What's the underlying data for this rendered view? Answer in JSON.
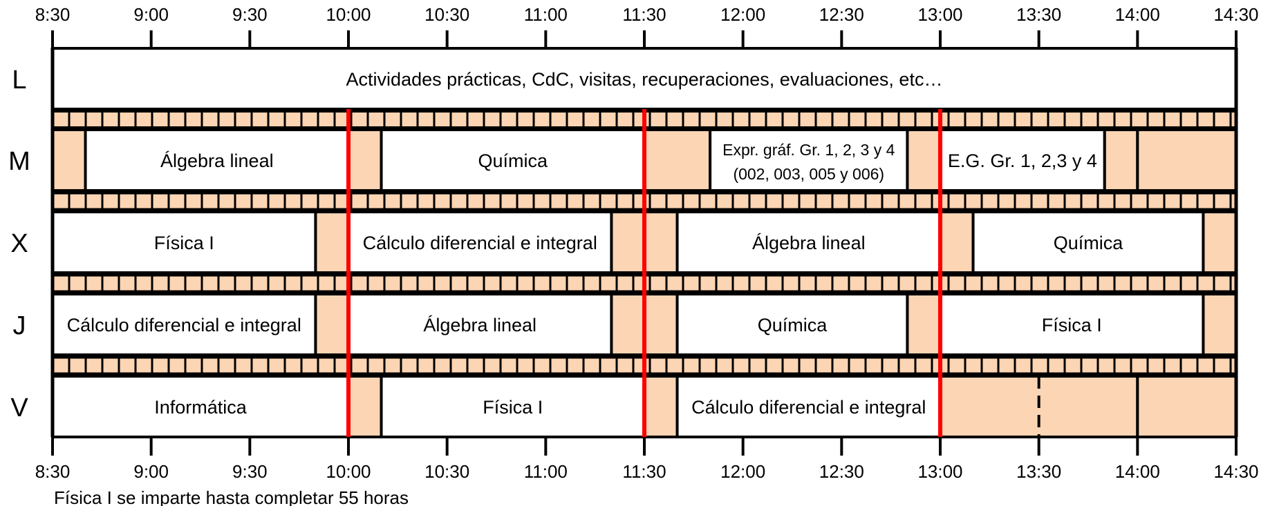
{
  "time_labels": [
    "8:30",
    "9:00",
    "9:30",
    "10:00",
    "10:30",
    "11:00",
    "11:30",
    "12:00",
    "12:30",
    "13:00",
    "13:30",
    "14:00",
    "14:30"
  ],
  "days": [
    {
      "label": "L",
      "blocks": [
        {
          "text": "Actividades prácticas, CdC, visitas, recuperaciones, evaluaciones, etc…",
          "start": "8:30",
          "end": "14:30",
          "kind": "class"
        }
      ]
    },
    {
      "label": "M",
      "blocks": [
        {
          "text": "",
          "start": "8:30",
          "end": "8:40",
          "kind": "break"
        },
        {
          "text": "Álgebra lineal",
          "start": "8:40",
          "end": "10:00",
          "kind": "class"
        },
        {
          "text": "",
          "start": "10:00",
          "end": "10:10",
          "kind": "break"
        },
        {
          "text": "Química",
          "start": "10:10",
          "end": "11:30",
          "kind": "class"
        },
        {
          "text": "",
          "start": "11:30",
          "end": "11:50",
          "kind": "break"
        },
        {
          "text": "Expr. gráf. Gr. 1, 2, 3  y 4",
          "text2": "(002, 003, 005 y 006)",
          "start": "11:50",
          "end": "12:50",
          "kind": "class"
        },
        {
          "text": "",
          "start": "12:50",
          "end": "13:00",
          "kind": "break"
        },
        {
          "text": "E.G. Gr. 1, 2,3 y 4",
          "start": "13:00",
          "end": "13:50",
          "kind": "class"
        },
        {
          "text": "",
          "start": "13:50",
          "end": "14:00",
          "kind": "break"
        },
        {
          "text": "",
          "start": "14:00",
          "end": "14:30",
          "kind": "break"
        }
      ]
    },
    {
      "label": "X",
      "blocks": [
        {
          "text": "Física I",
          "start": "8:30",
          "end": "9:50",
          "kind": "class"
        },
        {
          "text": "",
          "start": "9:50",
          "end": "10:00",
          "kind": "break"
        },
        {
          "text": "Cálculo diferencial e integral",
          "start": "10:00",
          "end": "11:20",
          "kind": "class"
        },
        {
          "text": "",
          "start": "11:20",
          "end": "11:40",
          "kind": "break"
        },
        {
          "text": "Álgebra lineal",
          "start": "11:40",
          "end": "13:00",
          "kind": "class"
        },
        {
          "text": "",
          "start": "13:00",
          "end": "13:10",
          "kind": "break"
        },
        {
          "text": "Química",
          "start": "13:10",
          "end": "14:20",
          "kind": "class"
        },
        {
          "text": "",
          "start": "14:20",
          "end": "14:30",
          "kind": "break"
        }
      ]
    },
    {
      "label": "J",
      "blocks": [
        {
          "text": "Cálculo diferencial e integral",
          "start": "8:30",
          "end": "9:50",
          "kind": "class"
        },
        {
          "text": "",
          "start": "9:50",
          "end": "10:00",
          "kind": "break"
        },
        {
          "text": "Álgebra lineal",
          "start": "10:00",
          "end": "11:20",
          "kind": "class"
        },
        {
          "text": "",
          "start": "11:20",
          "end": "11:40",
          "kind": "break"
        },
        {
          "text": "Química",
          "start": "11:40",
          "end": "12:50",
          "kind": "class"
        },
        {
          "text": "",
          "start": "12:50",
          "end": "13:00",
          "kind": "break"
        },
        {
          "text": "Física I",
          "start": "13:00",
          "end": "14:20",
          "kind": "class"
        },
        {
          "text": "",
          "start": "14:20",
          "end": "14:30",
          "kind": "break"
        }
      ]
    },
    {
      "label": "V",
      "blocks": [
        {
          "text": "Informática",
          "start": "8:30",
          "end": "10:00",
          "kind": "class"
        },
        {
          "text": "",
          "start": "10:00",
          "end": "10:10",
          "kind": "break"
        },
        {
          "text": "Física I",
          "start": "10:10",
          "end": "11:30",
          "kind": "class"
        },
        {
          "text": "",
          "start": "11:30",
          "end": "11:40",
          "kind": "break"
        },
        {
          "text": "Cálculo diferencial e integral",
          "start": "11:40",
          "end": "13:00",
          "kind": "class"
        },
        {
          "text": "",
          "start": "13:00",
          "end": "14:00",
          "kind": "break"
        },
        {
          "text": "",
          "start": "14:00",
          "end": "14:30",
          "kind": "break"
        }
      ]
    }
  ],
  "red_lines_at": [
    "10:00",
    "11:30",
    "13:00"
  ],
  "footnote": "Física I se imparte hasta completar 55 horas",
  "colors": {
    "break": "#fbd5b4",
    "line": "#000000",
    "red": "#ff0000",
    "class": "#ffffff"
  }
}
